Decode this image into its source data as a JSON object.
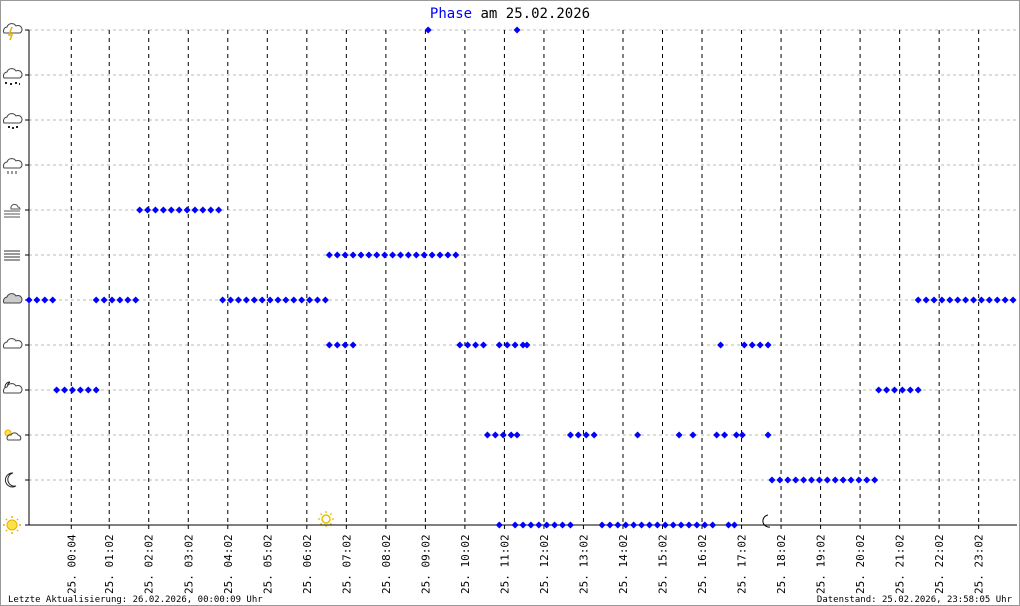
{
  "chart_data": {
    "type": "scatter",
    "title": "Phase",
    "title_rest": "am 25.02.2026",
    "footer_left": "Letzte Aktualisierung: 26.02.2026, 00:00:09 Uhr",
    "footer_right": "Datenstand: 25.02.2026, 23:58:05 Uhr",
    "color": "#0000ff",
    "grid": true,
    "xlim": [
      -1,
      24
    ],
    "ylim": [
      0,
      11
    ],
    "yticks": [
      0,
      1,
      2,
      3,
      4,
      5,
      6,
      7,
      8,
      9,
      10,
      11
    ],
    "xticks": [
      {
        "value": 0.07,
        "label": "25. 00:04"
      },
      {
        "value": 1.03,
        "label": "25. 01:02"
      },
      {
        "value": 2.03,
        "label": "25. 02:02"
      },
      {
        "value": 3.03,
        "label": "25. 03:02"
      },
      {
        "value": 4.03,
        "label": "25. 04:02"
      },
      {
        "value": 5.03,
        "label": "25. 05:02"
      },
      {
        "value": 6.03,
        "label": "25. 06:02"
      },
      {
        "value": 7.03,
        "label": "25. 07:02"
      },
      {
        "value": 8.03,
        "label": "25. 08:02"
      },
      {
        "value": 9.03,
        "label": "25. 09:02"
      },
      {
        "value": 10.03,
        "label": "25. 10:02"
      },
      {
        "value": 11.03,
        "label": "25. 11:02"
      },
      {
        "value": 12.03,
        "label": "25. 12:02"
      },
      {
        "value": 13.03,
        "label": "25. 13:02"
      },
      {
        "value": 14.03,
        "label": "25. 14:02"
      },
      {
        "value": 15.03,
        "label": "25. 15:02"
      },
      {
        "value": 16.03,
        "label": "25. 16:02"
      },
      {
        "value": 17.03,
        "label": "25. 17:02"
      },
      {
        "value": 18.03,
        "label": "25. 18:02"
      },
      {
        "value": 19.03,
        "label": "25. 19:02"
      },
      {
        "value": 20.03,
        "label": "25. 20:02"
      },
      {
        "value": 21.03,
        "label": "25. 21:02"
      },
      {
        "value": 22.03,
        "label": "25. 22:02"
      },
      {
        "value": 23.03,
        "label": "25. 23:02"
      }
    ],
    "x": [
      -1.0,
      -0.8,
      -0.6,
      -0.4,
      -0.3,
      -0.1,
      0.1,
      0.3,
      0.5,
      0.7,
      0.7,
      0.9,
      1.1,
      1.3,
      1.5,
      1.7,
      1.8,
      2.0,
      2.2,
      2.4,
      2.6,
      2.8,
      3.0,
      3.2,
      3.4,
      3.6,
      3.8,
      3.9,
      4.1,
      4.3,
      4.5,
      4.7,
      4.9,
      5.1,
      5.3,
      5.5,
      5.7,
      5.9,
      6.1,
      6.3,
      6.5,
      6.6,
      6.8,
      7.0,
      7.2,
      7.4,
      7.6,
      7.8,
      8.0,
      8.2,
      8.4,
      8.6,
      8.8,
      9.0,
      9.2,
      9.4,
      9.6,
      9.8,
      6.6,
      6.8,
      7.0,
      7.2,
      9.1,
      11.35,
      9.9,
      10.1,
      10.3,
      10.5,
      10.6,
      10.8,
      11.0,
      11.2,
      11.35,
      10.9,
      11.1,
      11.3,
      11.5,
      11.6,
      10.9,
      11.3,
      11.5,
      11.7,
      11.9,
      12.1,
      12.3,
      12.5,
      12.7,
      12.7,
      12.9,
      13.1,
      13.3,
      13.5,
      13.7,
      13.9,
      14.1,
      14.3,
      14.4,
      14.5,
      14.7,
      14.9,
      15.1,
      15.3,
      15.5,
      15.7,
      15.9,
      16.1,
      16.3,
      15.45,
      15.8,
      16.4,
      16.6,
      16.5,
      16.7,
      16.85,
      16.9,
      17.05,
      17.7,
      17.1,
      17.3,
      17.5,
      17.7,
      17.8,
      18.0,
      18.2,
      18.4,
      18.6,
      18.8,
      19.0,
      19.2,
      19.4,
      19.6,
      19.8,
      20.0,
      20.2,
      20.4,
      20.5,
      20.7,
      20.9,
      21.1,
      21.3,
      21.5,
      21.5,
      21.7,
      21.9,
      22.1,
      22.3,
      22.5,
      22.7,
      22.9,
      23.1,
      23.3,
      23.5,
      23.7,
      23.9
    ],
    "values": [
      5,
      5,
      5,
      5,
      3,
      3,
      3,
      3,
      3,
      3,
      5,
      5,
      5,
      5,
      5,
      5,
      7,
      7,
      7,
      7,
      7,
      7,
      7,
      7,
      7,
      7,
      7,
      5,
      5,
      5,
      5,
      5,
      5,
      5,
      5,
      5,
      5,
      5,
      5,
      5,
      5,
      6,
      6,
      6,
      6,
      6,
      6,
      6,
      6,
      6,
      6,
      6,
      6,
      6,
      6,
      6,
      6,
      6,
      4,
      4,
      4,
      4,
      11,
      11,
      4,
      4,
      4,
      4,
      2,
      2,
      2,
      2,
      2,
      4,
      4,
      4,
      4,
      4,
      0,
      0,
      0,
      0,
      0,
      0,
      0,
      0,
      0,
      2,
      2,
      2,
      2,
      0,
      0,
      0,
      0,
      0,
      2,
      0,
      0,
      0,
      0,
      0,
      0,
      0,
      0,
      0,
      0,
      2,
      2,
      2,
      2,
      4,
      0,
      0,
      2,
      2,
      2,
      4,
      4,
      4,
      4,
      1,
      1,
      1,
      1,
      1,
      1,
      1,
      1,
      1,
      1,
      1,
      1,
      1,
      1,
      3,
      3,
      3,
      3,
      3,
      3,
      5,
      5,
      5,
      5,
      5,
      5,
      5,
      5,
      5,
      5,
      5,
      5,
      5
    ]
  }
}
